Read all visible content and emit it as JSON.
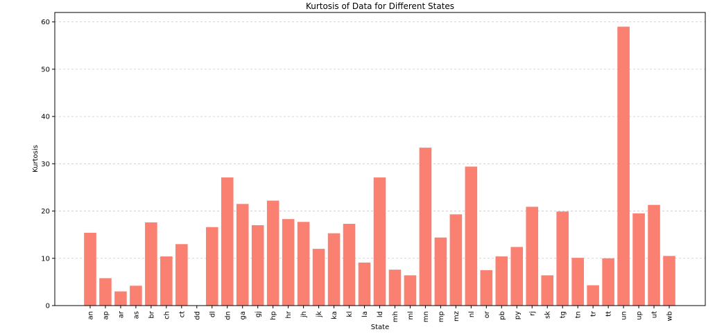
{
  "chart_data": {
    "type": "bar",
    "title": "Kurtosis of Data for Different States",
    "xlabel": "State",
    "ylabel": "Kurtosis",
    "ylim": [
      0,
      62
    ],
    "yticks": [
      0,
      10,
      20,
      30,
      40,
      50,
      60
    ],
    "grid": "y-dashed",
    "bar_color": "#fa8072",
    "categories": [
      "an",
      "ap",
      "ar",
      "as",
      "br",
      "ch",
      "ct",
      "dd",
      "dl",
      "dn",
      "ga",
      "gj",
      "hp",
      "hr",
      "jh",
      "jk",
      "ka",
      "kl",
      "la",
      "ld",
      "mh",
      "ml",
      "mn",
      "mp",
      "mz",
      "nl",
      "or",
      "pb",
      "py",
      "rj",
      "sk",
      "tg",
      "tn",
      "tr",
      "tt",
      "un",
      "up",
      "ut",
      "wb"
    ],
    "values": [
      15.4,
      5.8,
      3.0,
      4.2,
      17.6,
      10.4,
      13.0,
      0.0,
      16.6,
      27.1,
      21.5,
      17.0,
      22.2,
      18.3,
      17.7,
      12.0,
      15.3,
      17.3,
      9.1,
      27.1,
      7.6,
      6.4,
      33.4,
      14.4,
      19.3,
      29.4,
      7.5,
      10.4,
      12.4,
      20.9,
      6.4,
      19.9,
      10.1,
      4.3,
      10.0,
      59.0,
      19.5,
      21.3,
      10.5
    ]
  }
}
